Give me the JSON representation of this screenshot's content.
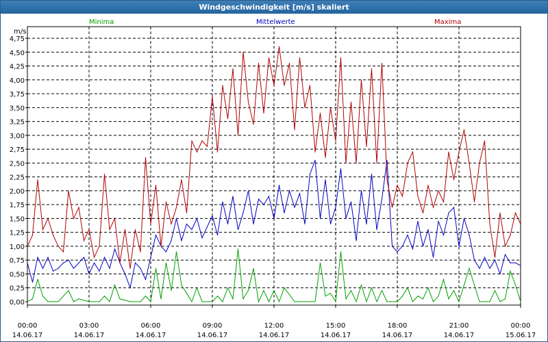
{
  "window": {
    "title": "Windgeschwindigkeit [m/s] skaliert"
  },
  "chart_data": {
    "type": "line",
    "title": "Windgeschwindigkeit [m/s] skaliert",
    "ylabel": "m/s",
    "xlabel": "",
    "ylim": [
      0,
      4.75
    ],
    "yticks": [
      "0,00",
      "0,25",
      "0,50",
      "0,75",
      "1,00",
      "1,25",
      "1,50",
      "1,75",
      "2,00",
      "2,25",
      "2,50",
      "2,75",
      "3,00",
      "3,25",
      "3,50",
      "3,75",
      "4,00",
      "4,25",
      "4,50",
      "4,75"
    ],
    "xticks": [
      {
        "time": "00:00",
        "date": "14.06.17"
      },
      {
        "time": "03:00",
        "date": "14.06.17"
      },
      {
        "time": "06:00",
        "date": "14.06.17"
      },
      {
        "time": "09:00",
        "date": "14.06.17"
      },
      {
        "time": "12:00",
        "date": "14.06.17"
      },
      {
        "time": "15:00",
        "date": "14.06.17"
      },
      {
        "time": "18:00",
        "date": "14.06.17"
      },
      {
        "time": "21:00",
        "date": "14.06.17"
      },
      {
        "time": "00:00",
        "date": "15.06.17"
      }
    ],
    "xlim_hours": [
      0,
      24
    ],
    "grid": true,
    "legend": [
      "Minima",
      "Mittelwerte",
      "Maxima"
    ],
    "series": [
      {
        "name": "Minima",
        "color": "#00a000",
        "x": [
          0,
          0.25,
          0.5,
          0.75,
          1,
          1.25,
          1.5,
          2,
          2.25,
          2.5,
          3,
          3.5,
          3.75,
          4,
          4.25,
          4.5,
          5,
          5.5,
          5.75,
          6,
          6.25,
          6.5,
          6.75,
          7,
          7.25,
          7.5,
          7.75,
          8,
          8.25,
          8.5,
          9,
          9.25,
          9.5,
          9.75,
          10,
          10.25,
          10.5,
          10.75,
          11,
          11.25,
          11.5,
          11.75,
          12,
          12.25,
          12.5,
          13,
          13.5,
          14,
          14.25,
          14.5,
          14.75,
          15,
          15.25,
          15.5,
          15.75,
          16,
          16.25,
          16.5,
          16.75,
          17,
          17.25,
          17.5,
          18,
          18.25,
          18.5,
          18.75,
          19,
          19.25,
          19.5,
          19.75,
          20,
          20.25,
          20.5,
          20.75,
          21,
          21.25,
          21.5,
          22,
          22.5,
          22.75,
          23,
          23.25,
          23.5,
          23.75,
          24
        ],
        "y": [
          0,
          0.05,
          0.4,
          0.1,
          0,
          0,
          0,
          0.2,
          0,
          0.05,
          0,
          0,
          0.1,
          0,
          0.3,
          0.05,
          0,
          0,
          0.1,
          0,
          0.6,
          0.05,
          0.7,
          0.2,
          0.9,
          0.3,
          0.15,
          0,
          0.25,
          0,
          0,
          0.1,
          0,
          0.25,
          0.05,
          0.95,
          0.05,
          0.2,
          0.6,
          0,
          0.2,
          0,
          0.2,
          0,
          0.25,
          0,
          0,
          0,
          0.7,
          0.1,
          0.15,
          0,
          0.9,
          0.05,
          0.2,
          0,
          0.3,
          0,
          0.25,
          0,
          0.2,
          0,
          0,
          0.1,
          0.25,
          0,
          0.1,
          0.05,
          0.25,
          0,
          0.1,
          0.4,
          0.05,
          0.2,
          0,
          0.3,
          0.6,
          0,
          0,
          0.2,
          0,
          0.05,
          0.55,
          0.3,
          0
        ]
      },
      {
        "name": "Mittelwerte",
        "color": "#0000c0",
        "x": [
          0,
          0.25,
          0.5,
          0.75,
          1,
          1.25,
          1.5,
          1.75,
          2,
          2.25,
          2.5,
          2.75,
          3,
          3.25,
          3.5,
          3.75,
          4,
          4.25,
          4.5,
          4.75,
          5,
          5.25,
          5.5,
          5.75,
          6,
          6.25,
          6.5,
          6.75,
          7,
          7.25,
          7.5,
          7.75,
          8,
          8.25,
          8.5,
          8.75,
          9,
          9.25,
          9.5,
          9.75,
          10,
          10.25,
          10.5,
          10.75,
          11,
          11.25,
          11.5,
          11.75,
          12,
          12.25,
          12.5,
          12.75,
          13,
          13.25,
          13.5,
          13.75,
          14,
          14.25,
          14.5,
          14.75,
          15,
          15.25,
          15.5,
          15.75,
          16,
          16.25,
          16.5,
          16.75,
          17,
          17.25,
          17.5,
          17.75,
          18,
          18.25,
          18.5,
          18.75,
          19,
          19.25,
          19.5,
          19.75,
          20,
          20.25,
          20.5,
          20.75,
          21,
          21.25,
          21.5,
          21.75,
          22,
          22.25,
          22.5,
          22.75,
          23,
          23.25,
          23.5,
          23.75,
          24
        ],
        "y": [
          0.7,
          0.35,
          0.8,
          0.6,
          0.8,
          0.55,
          0.6,
          0.7,
          0.75,
          0.6,
          0.7,
          0.8,
          0.5,
          0.7,
          0.55,
          0.8,
          0.6,
          0.95,
          0.7,
          0.5,
          0.25,
          0.7,
          0.6,
          0.4,
          0.8,
          1.2,
          1.0,
          0.9,
          1.1,
          1.5,
          1.1,
          1.4,
          1.3,
          1.5,
          1.15,
          1.35,
          1.55,
          1.2,
          1.8,
          1.4,
          1.9,
          1.3,
          1.6,
          2.0,
          1.4,
          1.85,
          1.75,
          1.9,
          1.5,
          2.1,
          1.6,
          2.0,
          1.7,
          1.95,
          1.4,
          2.3,
          2.55,
          1.5,
          2.2,
          1.4,
          1.7,
          2.4,
          1.5,
          1.8,
          1.1,
          2.0,
          1.4,
          2.3,
          1.3,
          1.85,
          2.55,
          1.0,
          0.9,
          1.0,
          1.2,
          0.95,
          1.45,
          1.0,
          1.3,
          0.8,
          1.45,
          1.2,
          1.6,
          1.7,
          1.0,
          1.5,
          1.2,
          0.75,
          0.6,
          0.8,
          0.6,
          0.75,
          0.5,
          0.85,
          0.7,
          0.7,
          0.65
        ]
      },
      {
        "name": "Maxima",
        "color": "#b00000",
        "x": [
          0,
          0.25,
          0.5,
          0.75,
          1,
          1.25,
          1.5,
          1.75,
          2,
          2.25,
          2.5,
          2.75,
          3,
          3.25,
          3.5,
          3.75,
          4,
          4.25,
          4.5,
          4.75,
          5,
          5.25,
          5.5,
          5.75,
          6,
          6.25,
          6.5,
          6.75,
          7,
          7.25,
          7.5,
          7.75,
          8,
          8.25,
          8.5,
          8.75,
          9,
          9.25,
          9.5,
          9.75,
          10,
          10.25,
          10.5,
          10.75,
          11,
          11.25,
          11.5,
          11.75,
          12,
          12.25,
          12.5,
          12.75,
          13,
          13.25,
          13.5,
          13.75,
          14,
          14.25,
          14.5,
          14.75,
          15,
          15.25,
          15.5,
          15.75,
          16,
          16.25,
          16.5,
          16.75,
          17,
          17.25,
          17.5,
          17.75,
          18,
          18.25,
          18.5,
          18.75,
          19,
          19.25,
          19.5,
          19.75,
          20,
          20.25,
          20.5,
          20.75,
          21,
          21.25,
          21.5,
          21.75,
          22,
          22.25,
          22.5,
          22.75,
          23,
          23.25,
          23.5,
          23.75,
          24
        ],
        "y": [
          1.0,
          1.2,
          2.2,
          1.3,
          1.5,
          1.2,
          1.0,
          0.9,
          2.0,
          1.5,
          1.7,
          1.1,
          1.3,
          0.8,
          1.0,
          2.3,
          1.3,
          1.5,
          0.7,
          1.3,
          0.6,
          1.3,
          0.9,
          2.6,
          1.4,
          2.1,
          1.0,
          1.8,
          1.4,
          1.7,
          2.2,
          1.6,
          2.9,
          2.7,
          2.9,
          2.8,
          3.7,
          2.7,
          3.9,
          3.3,
          4.2,
          3.0,
          4.5,
          3.6,
          3.2,
          4.3,
          3.4,
          4.4,
          3.9,
          4.6,
          3.9,
          4.3,
          3.1,
          4.4,
          3.5,
          3.9,
          2.7,
          3.4,
          2.6,
          3.5,
          2.9,
          4.4,
          2.5,
          3.6,
          2.5,
          4.0,
          2.8,
          4.2,
          2.5,
          4.3,
          2.2,
          1.7,
          2.1,
          1.9,
          2.5,
          2.7,
          1.9,
          1.6,
          2.1,
          1.7,
          2.0,
          1.8,
          2.7,
          2.2,
          2.7,
          3.1,
          2.5,
          1.8,
          2.5,
          2.9,
          1.4,
          0.8,
          1.6,
          1.0,
          1.2,
          1.6,
          1.4
        ]
      }
    ]
  }
}
